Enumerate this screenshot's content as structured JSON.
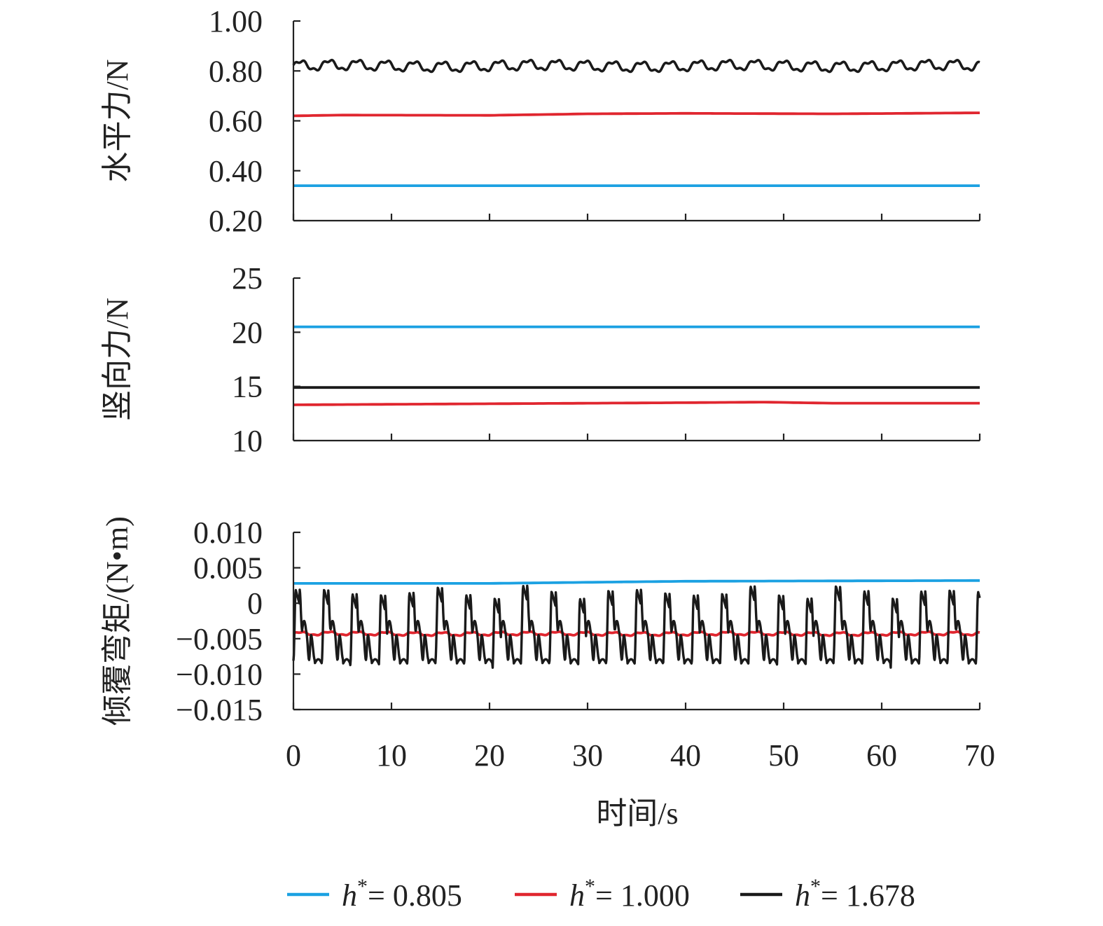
{
  "colors": {
    "blue": "#1BA1E2",
    "red": "#E0262F",
    "black": "#1a1a1a"
  },
  "legend": [
    {
      "italic": "h",
      "sup": "*",
      "rest": "= 0.805",
      "color": "#1BA1E2"
    },
    {
      "italic": "h",
      "sup": "*",
      "rest": "= 1.000",
      "color": "#E0262F"
    },
    {
      "italic": "h",
      "sup": "*",
      "rest": "= 1.678",
      "color": "#1a1a1a"
    }
  ],
  "chart_data": [
    {
      "type": "line",
      "ylabel": "水平力/N",
      "xlim": [
        0,
        70
      ],
      "ylim": [
        0.2,
        1.0
      ],
      "yticks": [
        "1.00",
        "0.80",
        "0.60",
        "0.40",
        "0.20"
      ],
      "ytick_values": [
        1.0,
        0.8,
        0.6,
        0.4,
        0.2
      ],
      "series": [
        {
          "name": "h*= 0.805",
          "color": "#1BA1E2",
          "kind": "constant",
          "value": 0.34
        },
        {
          "name": "h*= 1.000",
          "color": "#E0262F",
          "kind": "slow",
          "points": [
            [
              0,
              0.62
            ],
            [
              5,
              0.623
            ],
            [
              20,
              0.622
            ],
            [
              30,
              0.628
            ],
            [
              40,
              0.63
            ],
            [
              55,
              0.628
            ],
            [
              70,
              0.632
            ]
          ]
        },
        {
          "name": "h*= 1.678",
          "color": "#1a1a1a",
          "kind": "oscillating",
          "mean": 0.82,
          "amplitude": 0.025,
          "period": 2.9
        }
      ]
    },
    {
      "type": "line",
      "ylabel": "竖向力/N",
      "xlim": [
        0,
        70
      ],
      "ylim": [
        10,
        25
      ],
      "yticks": [
        "25",
        "20",
        "15",
        "10"
      ],
      "ytick_values": [
        25,
        20,
        15,
        10
      ],
      "series": [
        {
          "name": "h*= 0.805",
          "color": "#1BA1E2",
          "kind": "constant",
          "value": 20.5
        },
        {
          "name": "h*= 1.000",
          "color": "#E0262F",
          "kind": "slow",
          "points": [
            [
              0,
              13.3
            ],
            [
              20,
              13.4
            ],
            [
              40,
              13.5
            ],
            [
              48,
              13.55
            ],
            [
              55,
              13.45
            ],
            [
              70,
              13.45
            ]
          ]
        },
        {
          "name": "h*= 1.678",
          "color": "#1a1a1a",
          "kind": "constant",
          "value": 14.9
        }
      ]
    },
    {
      "type": "line",
      "ylabel": "倾覆弯矩/(N•m)",
      "xlabel": "时间/s",
      "xlim": [
        0,
        70
      ],
      "xticks": [
        "0",
        "10",
        "20",
        "30",
        "40",
        "50",
        "60",
        "70"
      ],
      "xtick_values": [
        0,
        10,
        20,
        30,
        40,
        50,
        60,
        70
      ],
      "ylim": [
        -0.015,
        0.01
      ],
      "yticks": [
        "0.010",
        "0.005",
        "0",
        "−0.005",
        "−0.010",
        "−0.015"
      ],
      "ytick_values": [
        0.01,
        0.005,
        0,
        -0.005,
        -0.01,
        -0.015
      ],
      "series": [
        {
          "name": "h*= 0.805",
          "color": "#1BA1E2",
          "kind": "slow",
          "points": [
            [
              0,
              0.0028
            ],
            [
              20,
              0.0028
            ],
            [
              40,
              0.0031
            ],
            [
              70,
              0.0032
            ]
          ]
        },
        {
          "name": "h*= 1.000",
          "color": "#E0262F",
          "kind": "oscillating",
          "mean": -0.0043,
          "amplitude": 0.0003,
          "period": 2.9
        },
        {
          "name": "h*= 1.678",
          "color": "#1a1a1a",
          "kind": "spiky",
          "mean": -0.0055,
          "max": 0.0015,
          "min": -0.0085,
          "period": 2.9
        }
      ]
    }
  ]
}
